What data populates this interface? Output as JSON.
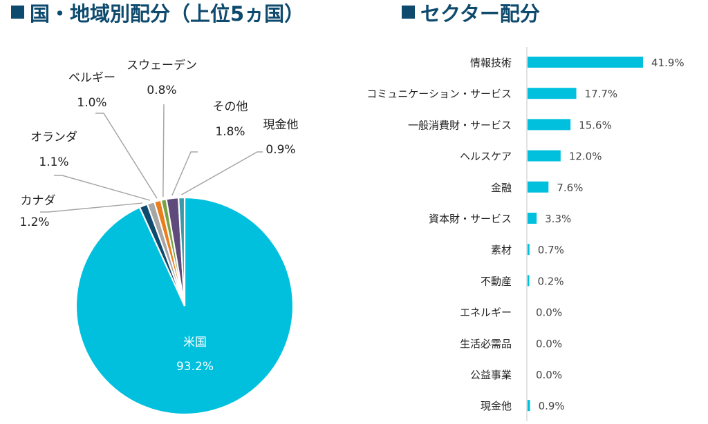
{
  "headings": {
    "country": "国・地域別配分（上位5ヵ国）",
    "sector": "セクター配分"
  },
  "colors": {
    "heading": "#0e4a6e",
    "bar": "#00c0dd"
  },
  "chart_data": [
    {
      "type": "pie",
      "title": "国・地域別配分（上位5ヵ国）",
      "start": "12 o'clock",
      "direction": "clockwise",
      "slices": [
        {
          "label": "米国",
          "value": 93.2,
          "display": "93.2%",
          "color": "#00c0de"
        },
        {
          "label": "カナダ",
          "value": 1.2,
          "display": "1.2%",
          "color": "#0d4a6d"
        },
        {
          "label": "オランダ",
          "value": 1.1,
          "display": "1.1%",
          "color": "#a6a6a6"
        },
        {
          "label": "ベルギー",
          "value": 1.0,
          "display": "1.0%",
          "color": "#ea7e1c"
        },
        {
          "label": "スウェーデン",
          "value": 0.8,
          "display": "0.8%",
          "color": "#79a243"
        },
        {
          "label": "その他",
          "value": 1.8,
          "display": "1.8%",
          "color": "#5f4b7b"
        },
        {
          "label": "現金他",
          "value": 0.9,
          "display": "0.9%",
          "color": "#3b98a6"
        }
      ]
    },
    {
      "type": "bar",
      "orientation": "horizontal",
      "title": "セクター配分",
      "categories": [
        "情報技術",
        "コミュニケーション・サービス",
        "一般消費財・サービス",
        "ヘルスケア",
        "金融",
        "資本財・サービス",
        "素材",
        "不動産",
        "エネルギー",
        "生活必需品",
        "公益事業",
        "現金他"
      ],
      "values": [
        41.9,
        17.7,
        15.6,
        12.0,
        7.6,
        3.3,
        0.7,
        0.2,
        0.0,
        0.0,
        0.0,
        0.9
      ],
      "labels": [
        "41.9%",
        "17.7%",
        "15.6%",
        "12.0%",
        "7.6%",
        "3.3%",
        "0.7%",
        "0.2%",
        "0.0%",
        "0.0%",
        "0.0%",
        "0.9%"
      ],
      "xlim": [
        0,
        41.9
      ],
      "grid": false,
      "legend": "none"
    }
  ]
}
